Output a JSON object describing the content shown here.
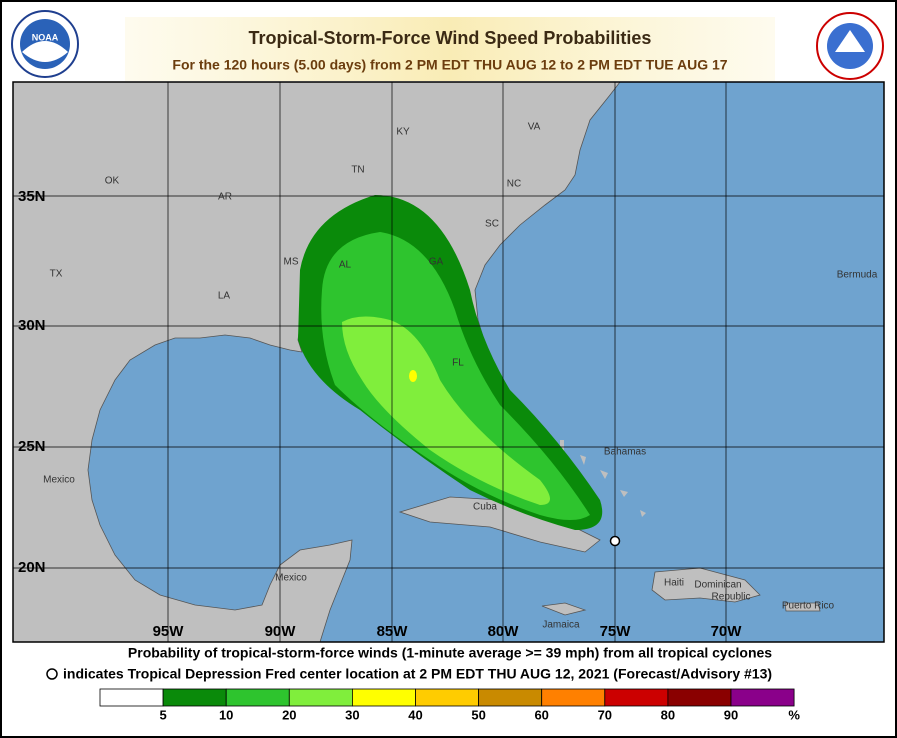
{
  "header": {
    "title": "Tropical-Storm-Force Wind Speed Probabilities",
    "subtitle": "For the 120 hours (5.00 days) from 2 PM EDT THU AUG 12 to 2 PM EDT TUE AUG 17"
  },
  "map": {
    "lat_labels": [
      "35N",
      "30N",
      "25N",
      "20N"
    ],
    "lon_labels": [
      "95W",
      "90W",
      "85W",
      "80W",
      "75W",
      "70W"
    ],
    "places": [
      "KY",
      "VA",
      "TN",
      "NC",
      "OK",
      "AR",
      "SC",
      "MS",
      "AL",
      "GA",
      "TX",
      "LA",
      "FL",
      "Bermuda",
      "Bahamas",
      "Mexico",
      "Cuba",
      "Mexico",
      "Haiti",
      "Dominican",
      "Republic",
      "Jamaica",
      "Puerto Rico"
    ]
  },
  "footer": {
    "line1": "Probability of tropical-storm-force winds (1-minute average >= 39 mph) from all tropical cyclones",
    "line2": "indicates Tropical Depression Fred center location at 2 PM EDT THU AUG 12, 2021 (Forecast/Advisory #13)"
  },
  "legend": {
    "ticks": [
      5,
      10,
      20,
      30,
      40,
      50,
      60,
      70,
      80,
      90
    ],
    "unit": "%",
    "colors": [
      "#ffffff",
      "#0a8a0a",
      "#2ec42e",
      "#80ee3c",
      "#ffff00",
      "#ffcc00",
      "#c98a00",
      "#ff8000",
      "#cc0000",
      "#8a0000",
      "#8a008a"
    ]
  }
}
